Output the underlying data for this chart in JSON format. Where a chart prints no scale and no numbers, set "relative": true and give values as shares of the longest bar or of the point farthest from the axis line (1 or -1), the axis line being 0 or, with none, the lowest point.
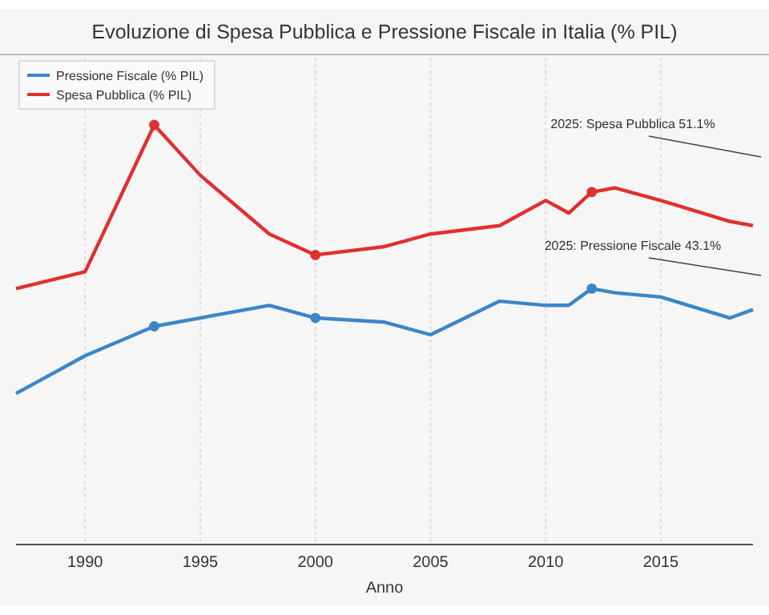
{
  "chart_data": {
    "type": "line",
    "title": "Evoluzione di Spesa Pubblica e Pressione Fiscale in Italia (% PIL)",
    "xlabel": "Anno",
    "relative": true,
    "x": [
      1987,
      1990,
      1993,
      1995,
      1998,
      2000,
      2003,
      2005,
      2008,
      2010,
      2011,
      2012,
      2013,
      2015,
      2018,
      2019
    ],
    "xlim": [
      1987,
      2019
    ],
    "xticks": [
      1990,
      1995,
      2000,
      2005,
      2010,
      2015
    ],
    "series": [
      {
        "name": "Pressione Fiscale (% PIL)",
        "color": "#3a86c8",
        "values": [
          0.36,
          0.45,
          0.52,
          0.54,
          0.57,
          0.54,
          0.53,
          0.5,
          0.58,
          0.57,
          0.57,
          0.61,
          0.6,
          0.59,
          0.54,
          0.56
        ]
      },
      {
        "name": "Spesa Pubblica (% PIL)",
        "color": "#e03030",
        "values": [
          0.61,
          0.65,
          1,
          0.88,
          0.74,
          0.69,
          0.71,
          0.74,
          0.76,
          0.82,
          0.79,
          0.84,
          0.85,
          0.82,
          0.77,
          0.76
        ]
      },
      {
        "type": "scatter",
        "marker": "circle",
        "color": "#3a86c8",
        "x": [
          1993,
          2000,
          2012
        ],
        "values": [
          0.52,
          0.54,
          0.61
        ]
      },
      {
        "type": "scatter",
        "marker": "circle",
        "color": "#e03030",
        "x": [
          1993,
          2000,
          2012
        ],
        "values": [
          1,
          0.69,
          0.84
        ]
      }
    ],
    "annotations": [
      "2025: Spesa Pubblica 51.1%",
      "2025: Pressione Fiscale 43.1%"
    ],
    "grid": "x",
    "legend": "top left",
    "line_style": "solid"
  }
}
